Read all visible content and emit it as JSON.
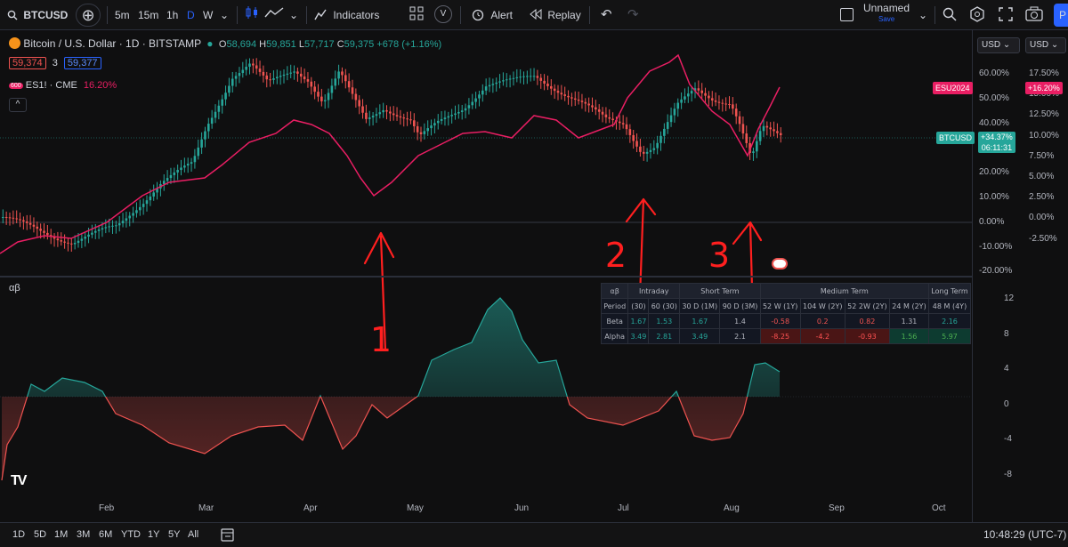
{
  "toolbar": {
    "symbol": "BTCUSD",
    "intervals": [
      "5m",
      "15m",
      "1h",
      "D",
      "W"
    ],
    "indicators": "Indicators",
    "alert": "Alert",
    "replay": "Replay",
    "layout_name": "Unnamed",
    "layout_status": "Save",
    "publish": "P"
  },
  "legend": {
    "title": "Bitcoin / U.S. Dollar · 1D · BITSTAMP",
    "o_label": "O",
    "o": "58,694",
    "h_label": "H",
    "h": "59,851",
    "l_label": "L",
    "l": "57,717",
    "c_label": "C",
    "c": "59,375",
    "change": "+678 (+1.16%)",
    "bid": "59,374",
    "spread": "3",
    "ask": "59,377",
    "compare_symbol": "ES1! · CME",
    "compare_change": "16.20%",
    "compare_badge": "600"
  },
  "currency": {
    "left": "USD",
    "right": "USD"
  },
  "price_axis_left": [
    "60.00%",
    "50.00%",
    "40.00%",
    "30.00%",
    "20.00%",
    "10.00%",
    "0.00%",
    "-10.00%",
    "-20.00%"
  ],
  "price_axis_right": [
    "17.50%",
    "15.00%",
    "12.50%",
    "10.00%",
    "7.50%",
    "5.00%",
    "2.50%",
    "0.00%",
    "-2.50%"
  ],
  "labels": {
    "esu": "ESU2024",
    "esu_value": "+16.20%",
    "btc": "BTCUSD",
    "btc_value": "+34.37%",
    "btc_countdown": "06:11:31"
  },
  "indicator": {
    "title": "αβ",
    "axis": [
      "12",
      "8",
      "4",
      "0",
      "-4",
      "-8"
    ]
  },
  "ab_table": {
    "corner": "αβ",
    "groups": [
      "Intraday",
      "Short Term",
      "Medium Term",
      "Long Term"
    ],
    "periods_label": "Period",
    "periods": [
      "(30)",
      "60 (30)",
      "30 D (1M)",
      "90 D (3M)",
      "52 W (1Y)",
      "104 W (2Y)",
      "52 2W (2Y)",
      "24 M (2Y)",
      "48 M (4Y)"
    ],
    "beta_label": "Beta",
    "beta": [
      "1.67",
      "1.53",
      "1.67",
      "1.4",
      "-0.58",
      "0.2",
      "0.82",
      "1.31",
      "2.16"
    ],
    "alpha_label": "Alpha",
    "alpha": [
      "3.49",
      "2.81",
      "3.49",
      "2.1",
      "-8.25",
      "-4.2",
      "-0.93",
      "1.56",
      "5.97"
    ]
  },
  "time_axis": [
    "Feb",
    "Mar",
    "Apr",
    "May",
    "Jun",
    "Jul",
    "Aug",
    "Sep",
    "Oct"
  ],
  "bottom_bar": {
    "ranges": [
      "1D",
      "5D",
      "1M",
      "3M",
      "6M",
      "YTD",
      "1Y",
      "5Y",
      "All"
    ],
    "clock": "10:48:29 (UTC-7)"
  },
  "annotations": [
    "1",
    "2",
    "3"
  ],
  "colors": {
    "up": "#26a69a",
    "down": "#ef5350",
    "compare_line": "#e91e63",
    "annotation": "#ff1f1f",
    "accent": "#2962ff"
  }
}
